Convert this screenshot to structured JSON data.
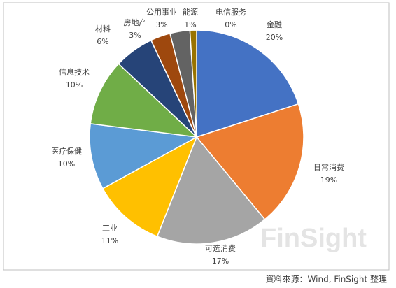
{
  "chart_data": {
    "type": "pie",
    "categories": [
      "金融",
      "日常消费",
      "可选消费",
      "工业",
      "医疗保健",
      "信息技术",
      "材料",
      "房地产",
      "公用事业",
      "能源",
      "电信服务"
    ],
    "values": [
      20,
      19,
      17,
      11,
      10,
      10,
      6,
      3,
      3,
      1,
      0
    ],
    "value_labels": [
      "20%",
      "19%",
      "17%",
      "11%",
      "10%",
      "10%",
      "6%",
      "3%",
      "3%",
      "1%",
      "0%"
    ],
    "colors": [
      "#4472c4",
      "#ed7d31",
      "#a5a5a5",
      "#ffc000",
      "#5b9bd5",
      "#70ad47",
      "#264478",
      "#9e480e",
      "#636363",
      "#997300",
      "#255e91"
    ],
    "watermark": "FinSight",
    "source": "資料來源：Wind, FinSight 整理"
  }
}
